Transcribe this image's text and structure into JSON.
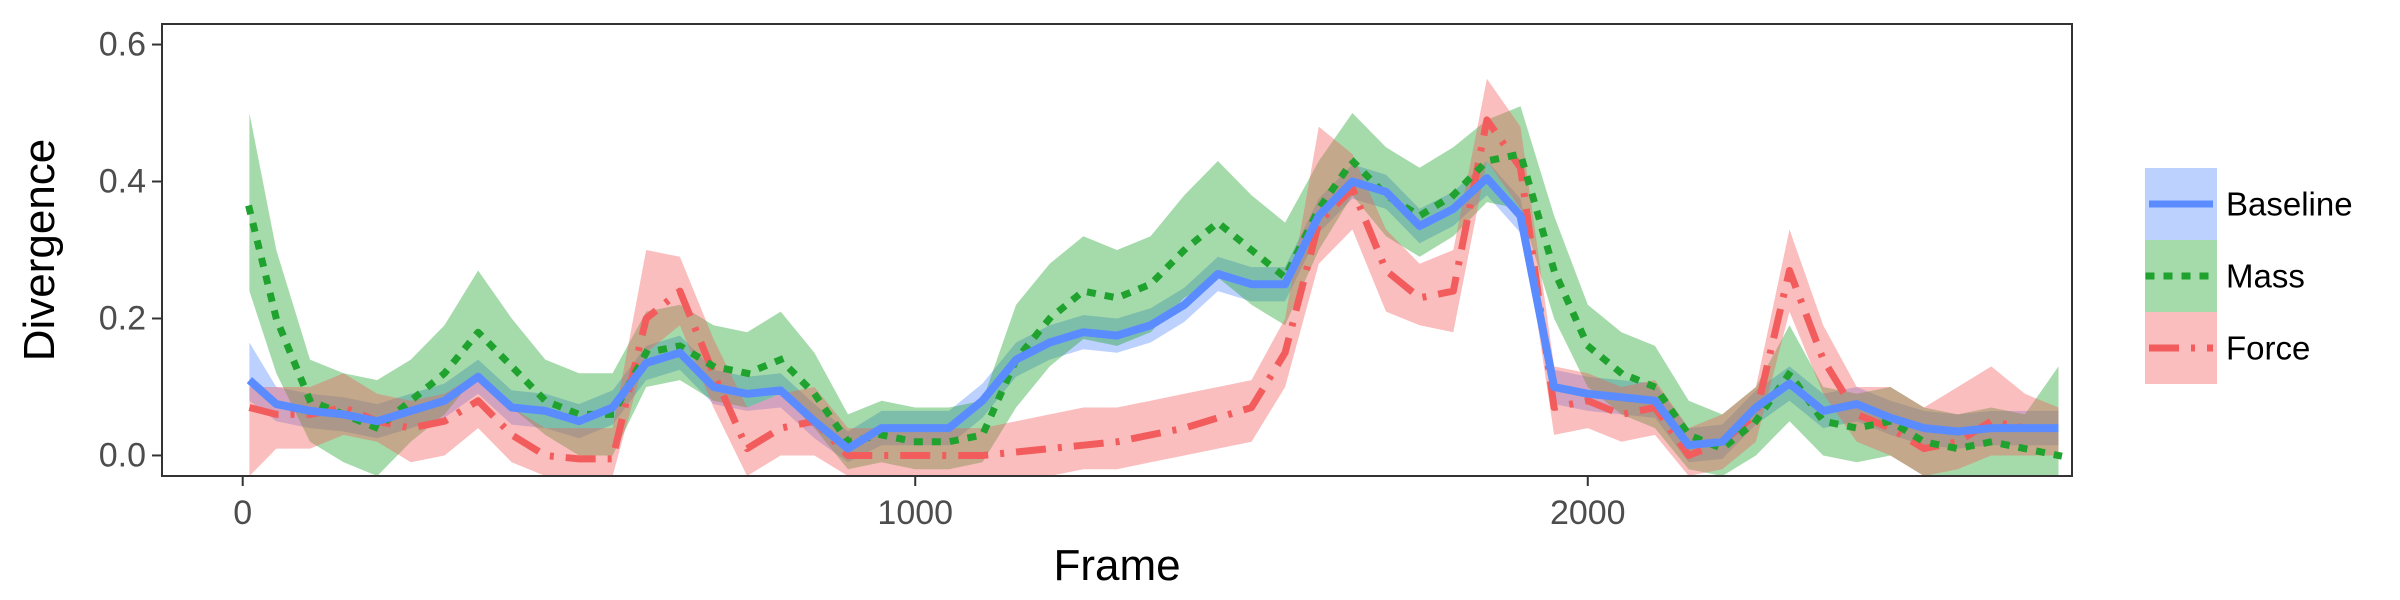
{
  "chart_data": {
    "type": "line",
    "title": "",
    "xlabel": "Frame",
    "ylabel": "Divergence",
    "xlim": [
      -120,
      2720
    ],
    "ylim": [
      -0.03,
      0.63
    ],
    "xticks": [
      0,
      1000,
      2000
    ],
    "xtick_labels": [
      "0",
      "1000",
      "2000"
    ],
    "yticks": [
      0.0,
      0.2,
      0.4,
      0.6
    ],
    "ytick_labels": [
      "0.0",
      "0.2",
      "0.4",
      "0.6"
    ],
    "grid": false,
    "legend_position": "right",
    "series": [
      {
        "name": "Baseline",
        "color": "#5b8cff",
        "line_style": "solid",
        "x": [
          10,
          50,
          100,
          150,
          200,
          250,
          300,
          350,
          400,
          450,
          500,
          550,
          600,
          650,
          700,
          750,
          800,
          850,
          900,
          950,
          1000,
          1050,
          1100,
          1150,
          1200,
          1250,
          1300,
          1350,
          1400,
          1450,
          1500,
          1550,
          1600,
          1650,
          1700,
          1750,
          1800,
          1850,
          1900,
          1950,
          2000,
          2050,
          2100,
          2150,
          2200,
          2250,
          2300,
          2350,
          2400,
          2450,
          2500,
          2550,
          2600,
          2650,
          2700
        ],
        "y": [
          0.11,
          0.075,
          0.065,
          0.06,
          0.05,
          0.065,
          0.08,
          0.115,
          0.07,
          0.065,
          0.05,
          0.07,
          0.135,
          0.15,
          0.1,
          0.09,
          0.095,
          0.05,
          0.01,
          0.04,
          0.04,
          0.04,
          0.08,
          0.14,
          0.165,
          0.18,
          0.175,
          0.19,
          0.22,
          0.265,
          0.25,
          0.25,
          0.35,
          0.4,
          0.385,
          0.335,
          0.36,
          0.405,
          0.35,
          0.1,
          0.09,
          0.085,
          0.08,
          0.015,
          0.02,
          0.07,
          0.105,
          0.065,
          0.075,
          0.055,
          0.04,
          0.035,
          0.04,
          0.04,
          0.04
        ],
        "lower": [
          0.08,
          0.05,
          0.04,
          0.035,
          0.025,
          0.04,
          0.055,
          0.09,
          0.045,
          0.04,
          0.025,
          0.045,
          0.11,
          0.125,
          0.075,
          0.065,
          0.07,
          0.025,
          -0.01,
          0.015,
          0.015,
          0.015,
          0.055,
          0.115,
          0.14,
          0.155,
          0.15,
          0.165,
          0.195,
          0.24,
          0.225,
          0.225,
          0.325,
          0.375,
          0.36,
          0.31,
          0.335,
          0.38,
          0.325,
          0.075,
          0.065,
          0.06,
          0.055,
          -0.01,
          -0.005,
          0.045,
          0.08,
          0.04,
          0.05,
          0.03,
          0.015,
          0.01,
          0.015,
          0.015,
          0.015
        ],
        "upper": [
          0.165,
          0.1,
          0.09,
          0.085,
          0.075,
          0.09,
          0.105,
          0.14,
          0.095,
          0.09,
          0.075,
          0.095,
          0.16,
          0.175,
          0.125,
          0.115,
          0.12,
          0.075,
          0.035,
          0.065,
          0.065,
          0.065,
          0.105,
          0.165,
          0.19,
          0.205,
          0.2,
          0.215,
          0.245,
          0.29,
          0.275,
          0.275,
          0.375,
          0.425,
          0.41,
          0.36,
          0.385,
          0.43,
          0.375,
          0.125,
          0.115,
          0.11,
          0.105,
          0.04,
          0.045,
          0.095,
          0.13,
          0.09,
          0.1,
          0.08,
          0.065,
          0.06,
          0.065,
          0.065,
          0.065
        ]
      },
      {
        "name": "Mass",
        "color": "#1fa22e",
        "line_style": "dotted",
        "x": [
          10,
          50,
          100,
          150,
          200,
          250,
          300,
          350,
          400,
          450,
          500,
          550,
          600,
          650,
          700,
          750,
          800,
          850,
          900,
          950,
          1000,
          1050,
          1100,
          1150,
          1200,
          1250,
          1300,
          1350,
          1400,
          1450,
          1500,
          1550,
          1600,
          1650,
          1700,
          1750,
          1800,
          1850,
          1900,
          1950,
          2000,
          2050,
          2100,
          2150,
          2200,
          2250,
          2300,
          2350,
          2400,
          2450,
          2500,
          2550,
          2600,
          2650,
          2700
        ],
        "y": [
          0.36,
          0.2,
          0.08,
          0.06,
          0.04,
          0.08,
          0.12,
          0.18,
          0.13,
          0.08,
          0.06,
          0.06,
          0.15,
          0.16,
          0.13,
          0.12,
          0.14,
          0.09,
          0.02,
          0.03,
          0.02,
          0.02,
          0.03,
          0.14,
          0.2,
          0.24,
          0.23,
          0.25,
          0.3,
          0.34,
          0.3,
          0.26,
          0.36,
          0.43,
          0.38,
          0.35,
          0.38,
          0.43,
          0.44,
          0.27,
          0.16,
          0.12,
          0.1,
          0.03,
          0.01,
          0.05,
          0.12,
          0.05,
          0.04,
          0.05,
          0.02,
          0.01,
          0.02,
          0.01,
          0.0
        ],
        "lower": [
          0.24,
          0.12,
          0.02,
          -0.01,
          -0.03,
          0.02,
          0.06,
          0.12,
          0.07,
          0.03,
          0.0,
          0.0,
          0.1,
          0.11,
          0.08,
          0.07,
          0.09,
          0.04,
          -0.02,
          -0.01,
          -0.02,
          -0.02,
          -0.01,
          0.07,
          0.13,
          0.17,
          0.16,
          0.18,
          0.23,
          0.26,
          0.22,
          0.19,
          0.3,
          0.38,
          0.32,
          0.29,
          0.32,
          0.37,
          0.36,
          0.2,
          0.1,
          0.06,
          0.04,
          -0.02,
          -0.04,
          0.0,
          0.05,
          0.0,
          -0.01,
          0.0,
          -0.03,
          -0.04,
          -0.03,
          -0.04,
          -0.05
        ],
        "upper": [
          0.5,
          0.3,
          0.14,
          0.12,
          0.11,
          0.14,
          0.19,
          0.27,
          0.2,
          0.14,
          0.12,
          0.12,
          0.21,
          0.22,
          0.19,
          0.18,
          0.21,
          0.15,
          0.06,
          0.08,
          0.07,
          0.07,
          0.08,
          0.22,
          0.28,
          0.32,
          0.3,
          0.32,
          0.38,
          0.43,
          0.38,
          0.34,
          0.43,
          0.5,
          0.45,
          0.42,
          0.45,
          0.49,
          0.51,
          0.35,
          0.22,
          0.18,
          0.16,
          0.08,
          0.06,
          0.1,
          0.19,
          0.1,
          0.09,
          0.1,
          0.07,
          0.06,
          0.07,
          0.06,
          0.13
        ]
      },
      {
        "name": "Force",
        "color": "#f25c5c",
        "line_style": "dashdot",
        "x": [
          10,
          50,
          100,
          150,
          200,
          250,
          300,
          350,
          400,
          450,
          500,
          550,
          600,
          650,
          700,
          750,
          800,
          850,
          900,
          950,
          1000,
          1050,
          1100,
          1150,
          1200,
          1250,
          1300,
          1350,
          1400,
          1450,
          1500,
          1550,
          1600,
          1650,
          1700,
          1750,
          1800,
          1850,
          1900,
          1950,
          2000,
          2050,
          2100,
          2150,
          2200,
          2250,
          2300,
          2350,
          2400,
          2450,
          2500,
          2550,
          2600,
          2650,
          2700
        ],
        "y": [
          0.07,
          0.06,
          0.06,
          0.07,
          0.05,
          0.04,
          0.05,
          0.08,
          0.03,
          0.0,
          -0.005,
          -0.005,
          0.2,
          0.24,
          0.12,
          0.01,
          0.04,
          0.05,
          0.0,
          0.0,
          0.0,
          0.0,
          0.0,
          0.005,
          0.01,
          0.015,
          0.02,
          0.03,
          0.04,
          0.055,
          0.07,
          0.15,
          0.34,
          0.39,
          0.27,
          0.23,
          0.24,
          0.49,
          0.42,
          0.07,
          0.08,
          0.06,
          0.07,
          0.0,
          0.02,
          0.06,
          0.27,
          0.14,
          0.06,
          0.04,
          0.01,
          0.02,
          0.05,
          0.04,
          0.04
        ],
        "lower": [
          -0.04,
          0.01,
          0.01,
          0.03,
          0.02,
          -0.01,
          0.0,
          0.04,
          -0.01,
          -0.04,
          -0.05,
          -0.04,
          0.15,
          0.19,
          0.07,
          -0.03,
          0.0,
          0.0,
          -0.04,
          -0.04,
          -0.04,
          -0.04,
          -0.04,
          -0.03,
          -0.03,
          -0.02,
          -0.02,
          -0.01,
          0.0,
          0.01,
          0.02,
          0.1,
          0.28,
          0.33,
          0.21,
          0.19,
          0.18,
          0.43,
          0.36,
          0.03,
          0.04,
          0.02,
          0.03,
          -0.04,
          -0.02,
          0.02,
          0.21,
          0.09,
          0.02,
          0.0,
          -0.03,
          -0.02,
          0.0,
          0.0,
          0.0
        ],
        "upper": [
          0.1,
          0.1,
          0.1,
          0.12,
          0.09,
          0.08,
          0.09,
          0.12,
          0.07,
          0.04,
          0.04,
          0.04,
          0.3,
          0.29,
          0.17,
          0.07,
          0.09,
          0.1,
          0.04,
          0.04,
          0.04,
          0.04,
          0.04,
          0.05,
          0.06,
          0.07,
          0.07,
          0.08,
          0.09,
          0.1,
          0.11,
          0.2,
          0.48,
          0.44,
          0.33,
          0.28,
          0.3,
          0.55,
          0.48,
          0.13,
          0.12,
          0.1,
          0.11,
          0.04,
          0.06,
          0.1,
          0.33,
          0.19,
          0.1,
          0.1,
          0.07,
          0.1,
          0.13,
          0.09,
          0.07
        ]
      }
    ]
  }
}
